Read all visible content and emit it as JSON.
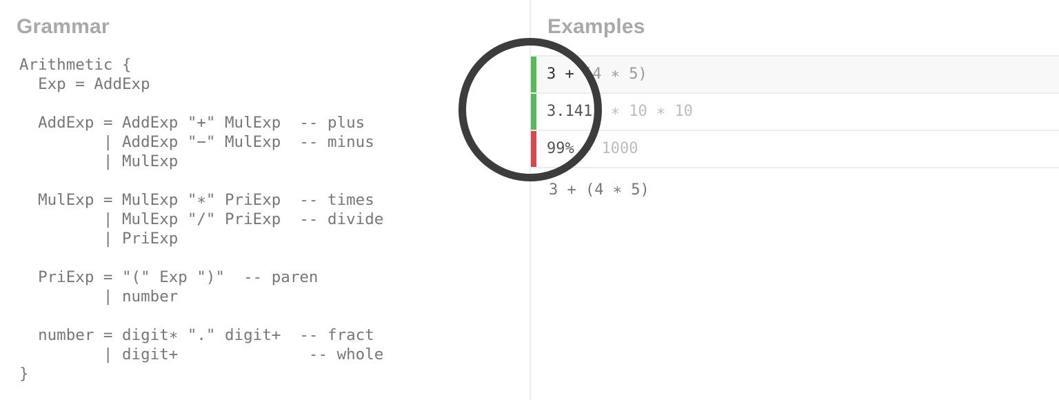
{
  "grammar": {
    "title": "Grammar",
    "code": "Arithmetic {\n  Exp = AddExp\n\n  AddExp = AddExp \"+\" MulExp  -- plus\n         | AddExp \"−\" MulExp  -- minus\n         | MulExp\n\n  MulExp = MulExp \"∗\" PriExp  -- times\n         | MulExp \"/\" PriExp  -- divide\n         | PriExp\n\n  PriExp = \"(\" Exp \")\"  -- paren\n         | number\n\n  number = digit∗ \".\" digit+  -- fract\n         | digit+              -- whole\n}"
  },
  "examples": {
    "title": "Examples",
    "items": [
      {
        "status": "pass",
        "matched": "3 + ",
        "rest": "(4 ∗ 5)"
      },
      {
        "status": "pass",
        "matched": "3.141",
        "rest": "5 ∗ 10 ∗ 10"
      },
      {
        "status": "fail",
        "matched": "99% ",
        "rest": "∗ 1000"
      }
    ],
    "editor_text": "3 + (4 ∗ 5)"
  },
  "colors": {
    "pass": "#56b95a",
    "fail": "#d9484f",
    "title": "#a9a9a9",
    "cursor_ring": "#3c3c3c"
  }
}
